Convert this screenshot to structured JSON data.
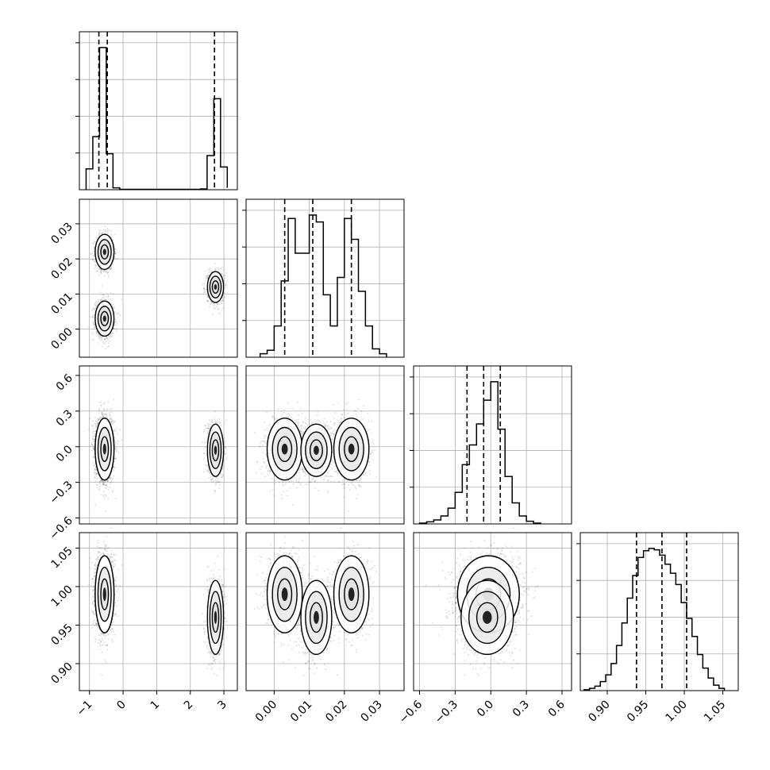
{
  "chart_data": {
    "type": "corner",
    "description_note": "",
    "grid": true,
    "colors": {
      "hist": "#000000",
      "grid": "#b0b0b0",
      "points": "#000000",
      "frame": "#000000"
    },
    "parameters": [
      {
        "range": [
          -1.3,
          3.4
        ],
        "ticks": [
          -1,
          0,
          1,
          2,
          3
        ],
        "tick_labels": [
          "−1",
          "0",
          "1",
          "2",
          "3"
        ],
        "quantiles": [
          -0.72,
          -0.47,
          2.72
        ]
      },
      {
        "range": [
          -0.008,
          0.037
        ],
        "ticks": [
          0.0,
          0.01,
          0.02,
          0.03
        ],
        "tick_labels": [
          "0.00",
          "0.01",
          "0.02",
          "0.03"
        ],
        "quantiles": [
          0.003,
          0.011,
          0.022
        ]
      },
      {
        "range": [
          -0.65,
          0.68
        ],
        "ticks": [
          -0.6,
          -0.3,
          0.0,
          0.3,
          0.6
        ],
        "tick_labels": [
          "−0.6",
          "−0.3",
          "0.0",
          "0.3",
          "0.6"
        ],
        "quantiles": [
          -0.2,
          -0.06,
          0.08
        ]
      },
      {
        "range": [
          0.865,
          1.07
        ],
        "ticks": [
          0.9,
          0.95,
          1.0,
          1.05
        ],
        "tick_labels": [
          "0.90",
          "0.95",
          "1.00",
          "1.05"
        ],
        "quantiles": [
          0.938,
          0.971,
          1.003
        ]
      }
    ],
    "histograms": [
      {
        "bins": [
          -1.1,
          -0.9,
          -0.7,
          -0.5,
          -0.3,
          -0.1,
          2.3,
          2.5,
          2.7,
          2.9,
          3.1
        ],
        "counts": [
          55,
          140,
          375,
          95,
          5,
          1,
          2,
          90,
          240,
          60,
          5
        ]
      },
      {
        "bins": [
          -0.004,
          -0.002,
          0.0,
          0.002,
          0.004,
          0.006,
          0.008,
          0.01,
          0.012,
          0.014,
          0.016,
          0.018,
          0.02,
          0.022,
          0.024,
          0.026,
          0.028,
          0.03,
          0.032
        ],
        "counts": [
          5,
          10,
          45,
          110,
          200,
          150,
          150,
          205,
          195,
          90,
          45,
          115,
          200,
          170,
          95,
          45,
          12,
          5
        ]
      },
      {
        "bins": [
          -0.6,
          -0.54,
          -0.48,
          -0.42,
          -0.36,
          -0.3,
          -0.24,
          -0.18,
          -0.12,
          -0.06,
          0.0,
          0.06,
          0.12,
          0.18,
          0.24,
          0.3,
          0.36,
          0.42
        ],
        "counts": [
          3,
          8,
          15,
          30,
          60,
          120,
          225,
          300,
          380,
          470,
          540,
          360,
          180,
          80,
          30,
          10,
          3
        ]
      },
      {
        "bins": [
          0.87,
          0.877,
          0.884,
          0.891,
          0.898,
          0.905,
          0.912,
          0.919,
          0.926,
          0.933,
          0.94,
          0.947,
          0.954,
          0.961,
          0.968,
          0.975,
          0.982,
          0.989,
          0.996,
          1.003,
          1.01,
          1.017,
          1.024,
          1.031,
          1.038,
          1.045,
          1.052
        ],
        "counts": [
          2,
          5,
          10,
          20,
          35,
          60,
          100,
          150,
          205,
          255,
          295,
          310,
          315,
          312,
          300,
          280,
          260,
          235,
          195,
          160,
          120,
          80,
          50,
          28,
          12,
          5
        ]
      }
    ],
    "modes": [
      {
        "center": [
          -0.55,
          0.022,
          -0.02,
          0.99
        ],
        "sigma": [
          0.14,
          0.0025,
          0.13,
          0.025
        ],
        "weight": 0.33
      },
      {
        "center": [
          -0.55,
          0.003,
          -0.02,
          0.99
        ],
        "sigma": [
          0.14,
          0.0025,
          0.13,
          0.025
        ],
        "weight": 0.33
      },
      {
        "center": [
          2.75,
          0.012,
          -0.03,
          0.96
        ],
        "sigma": [
          0.12,
          0.0022,
          0.11,
          0.024
        ],
        "weight": 0.34
      }
    ]
  }
}
